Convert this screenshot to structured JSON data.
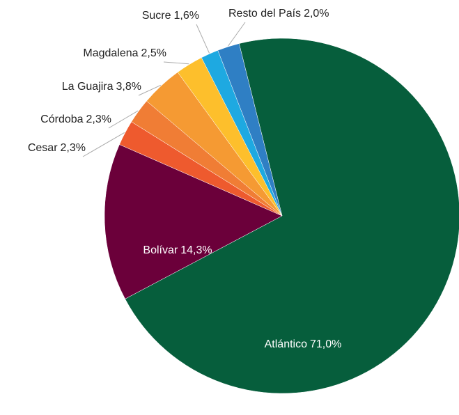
{
  "chart_data": {
    "type": "pie",
    "categories": [
      "Atlántico",
      "Bolívar",
      "Cesar",
      "Córdoba",
      "La Guajira",
      "Magdalena",
      "Sucre",
      "Resto del País"
    ],
    "values": [
      71.0,
      14.3,
      2.3,
      2.3,
      3.8,
      2.5,
      1.6,
      2.0
    ],
    "value_labels": [
      "71,0%",
      "14,3%",
      "2,3%",
      "2,3%",
      "3,8%",
      "2,5%",
      "1,6%",
      "2,0%"
    ],
    "colors": [
      "#065e3c",
      "#6b003a",
      "#ee5a2e",
      "#f07d35",
      "#f59a33",
      "#fdbf2c",
      "#1ea9e1",
      "#2f7fc4"
    ]
  }
}
